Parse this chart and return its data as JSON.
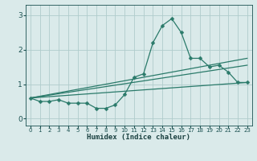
{
  "background_color": "#daeaea",
  "grid_color": "#b0cccc",
  "line_color": "#2a7a6a",
  "xlim": [
    -0.5,
    23.5
  ],
  "ylim": [
    -0.2,
    3.3
  ],
  "xticks": [
    0,
    1,
    2,
    3,
    4,
    5,
    6,
    7,
    8,
    9,
    10,
    11,
    12,
    13,
    14,
    15,
    16,
    17,
    18,
    19,
    20,
    21,
    22,
    23
  ],
  "yticks": [
    0,
    1,
    2,
    3
  ],
  "xlabel": "Humidex (Indice chaleur)",
  "series": [
    {
      "x": [
        0,
        1,
        2,
        3,
        4,
        5,
        6,
        7,
        8,
        9,
        10,
        11,
        12,
        13,
        14,
        15,
        16,
        17,
        18,
        19,
        20,
        21,
        22,
        23
      ],
      "y": [
        0.6,
        0.5,
        0.5,
        0.55,
        0.45,
        0.45,
        0.45,
        0.3,
        0.3,
        0.4,
        0.7,
        1.2,
        1.3,
        2.2,
        2.7,
        2.9,
        2.5,
        1.75,
        1.75,
        1.5,
        1.55,
        1.35,
        1.05,
        1.05
      ],
      "has_markers": true
    },
    {
      "x": [
        0,
        23
      ],
      "y": [
        0.6,
        1.05
      ],
      "has_markers": false
    },
    {
      "x": [
        0,
        23
      ],
      "y": [
        0.6,
        1.55
      ],
      "has_markers": false
    },
    {
      "x": [
        0,
        23
      ],
      "y": [
        0.6,
        1.75
      ],
      "has_markers": false
    }
  ]
}
